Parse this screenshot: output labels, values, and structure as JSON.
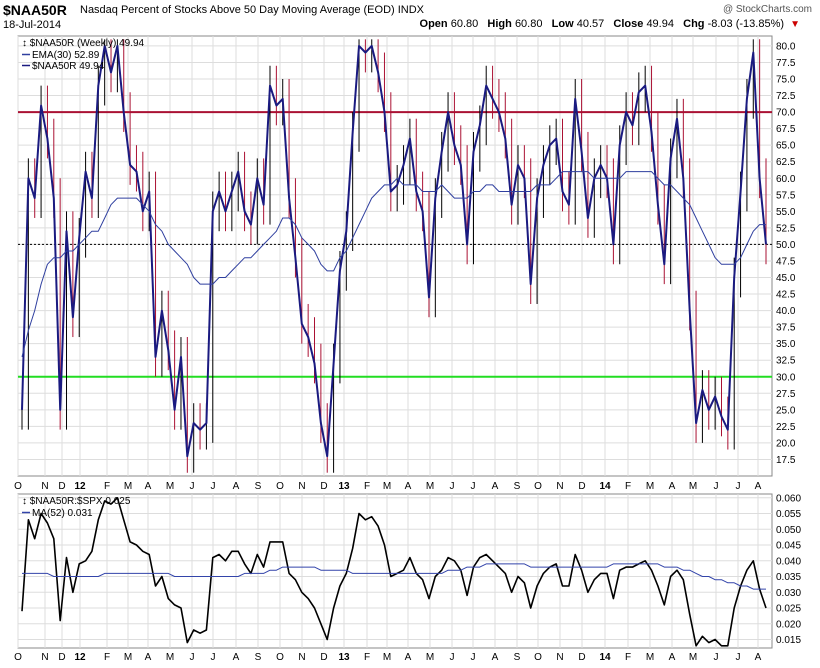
{
  "header": {
    "symbol": "$NAA50R",
    "description": "Nasdaq Percent of Stocks Above 50 Day Moving Average (EOD)  INDX",
    "watermark": "@ StockCharts.com",
    "date": "18-Jul-2014",
    "open_label": "Open",
    "open": "60.80",
    "high_label": "High",
    "high": "60.80",
    "low_label": "Low",
    "low": "40.57",
    "close_label": "Close",
    "close": "49.94",
    "chg_label": "Chg",
    "chg": "-8.03 (-13.85%)"
  },
  "colors": {
    "price_line": "#1a1a80",
    "ema_line": "#2f3f9f",
    "bar_up": "#000000",
    "bar_down": "#aa1133",
    "overbought_line": "#aa1133",
    "oversold_line": "#22dd22",
    "ratio_line": "#000000",
    "ma_line": "#3344aa"
  },
  "chart_data": [
    {
      "type": "line",
      "title": "$NAA50R (Weekly) 49.94",
      "legend": [
        "EMA(30) 52.89",
        "$NAA50R 49.94"
      ],
      "legend_position": "top-left",
      "ylim": [
        15,
        81.5
      ],
      "yticks": [
        "80.0",
        "77.5",
        "75.0",
        "72.5",
        "70.0",
        "67.5",
        "65.0",
        "62.5",
        "60.0",
        "57.5",
        "55.0",
        "52.5",
        "50.0",
        "47.5",
        "45.0",
        "42.5",
        "40.0",
        "37.5",
        "35.0",
        "32.5",
        "30.0",
        "27.5",
        "25.0",
        "22.5",
        "20.0",
        "17.5"
      ],
      "xtick_labels": [
        "O",
        "N",
        "D",
        "12",
        "F",
        "M",
        "A",
        "M",
        "J",
        "J",
        "A",
        "S",
        "O",
        "N",
        "D",
        "13",
        "F",
        "M",
        "A",
        "M",
        "J",
        "J",
        "A",
        "S",
        "O",
        "N",
        "D",
        "14",
        "F",
        "M",
        "A",
        "M",
        "J",
        "J",
        "A"
      ],
      "reference_lines": [
        70,
        50,
        30
      ],
      "grid": true,
      "series": [
        {
          "name": "$NAA50R",
          "values": [
            25,
            60,
            57,
            71,
            66,
            57,
            25,
            52,
            39,
            51,
            61,
            57,
            74,
            80,
            76,
            80,
            70,
            62,
            61,
            55,
            58,
            33,
            40,
            34,
            25,
            33,
            18,
            23,
            22,
            23,
            55,
            58,
            55,
            58,
            61,
            55,
            53,
            60,
            56,
            74,
            71,
            72,
            57,
            48,
            38,
            36,
            32,
            23,
            18,
            32,
            46,
            52,
            67,
            80,
            79,
            80,
            76,
            70,
            58,
            59,
            62,
            66,
            58,
            55,
            42,
            57,
            64,
            70,
            65,
            62,
            50,
            64,
            68,
            74,
            72,
            70,
            66,
            56,
            62,
            60,
            44,
            57,
            62,
            65,
            66,
            58,
            56,
            72,
            64,
            54,
            60,
            62,
            60,
            50,
            65,
            70,
            68,
            73,
            74,
            67,
            56,
            47,
            63,
            69,
            60,
            40,
            23,
            28,
            25,
            27,
            24,
            22,
            45,
            58,
            72,
            79,
            60,
            50
          ]
        },
        {
          "name": "EMA(30)",
          "values": [
            33,
            37,
            40,
            44,
            47,
            48,
            48,
            49,
            49,
            50,
            51,
            52,
            52,
            54,
            56,
            57,
            57,
            57,
            57,
            56,
            55,
            53,
            52,
            50,
            49,
            48,
            47,
            45,
            44,
            44,
            44,
            45,
            45,
            46,
            47,
            48,
            48,
            49,
            50,
            51,
            52,
            54,
            54,
            53,
            51,
            50,
            49,
            47,
            46,
            46,
            48,
            49,
            51,
            53,
            55,
            57,
            58,
            59,
            59,
            60,
            59,
            59,
            59,
            58,
            58,
            58,
            59,
            58,
            57,
            57,
            57,
            58,
            58,
            59,
            59,
            58,
            58,
            58,
            58,
            58,
            58,
            59,
            59,
            59,
            60,
            61,
            61,
            61,
            61,
            61,
            60,
            60,
            60,
            60,
            60,
            61,
            61,
            61,
            61,
            61,
            60,
            59,
            59,
            58,
            57,
            56,
            54,
            52,
            50,
            48,
            47,
            47,
            47,
            48,
            50,
            52,
            53,
            53
          ]
        }
      ]
    },
    {
      "type": "line",
      "title": "$NAA50R:$SPX 0.025",
      "legend": [
        "MA(52) 0.031"
      ],
      "legend_position": "top-left",
      "ylim": [
        0.0123,
        0.0612
      ],
      "yticks": [
        "0.060",
        "0.055",
        "0.050",
        "0.045",
        "0.040",
        "0.035",
        "0.030",
        "0.025",
        "0.020",
        "0.015"
      ],
      "xtick_labels": [
        "O",
        "N",
        "D",
        "12",
        "F",
        "M",
        "A",
        "M",
        "J",
        "J",
        "A",
        "S",
        "O",
        "N",
        "D",
        "13",
        "F",
        "M",
        "A",
        "M",
        "J",
        "J",
        "A",
        "S",
        "O",
        "N",
        "D",
        "14",
        "F",
        "M",
        "A",
        "M",
        "J",
        "J",
        "A"
      ],
      "grid": true,
      "series": [
        {
          "name": "$NAA50R:$SPX",
          "values": [
            0.024,
            0.053,
            0.047,
            0.055,
            0.052,
            0.047,
            0.021,
            0.041,
            0.03,
            0.039,
            0.04,
            0.043,
            0.053,
            0.059,
            0.058,
            0.06,
            0.053,
            0.046,
            0.045,
            0.043,
            0.042,
            0.032,
            0.035,
            0.028,
            0.026,
            0.025,
            0.014,
            0.018,
            0.017,
            0.018,
            0.041,
            0.042,
            0.04,
            0.043,
            0.043,
            0.039,
            0.036,
            0.042,
            0.038,
            0.046,
            0.046,
            0.046,
            0.036,
            0.034,
            0.03,
            0.028,
            0.025,
            0.02,
            0.015,
            0.025,
            0.032,
            0.036,
            0.044,
            0.055,
            0.053,
            0.054,
            0.051,
            0.045,
            0.035,
            0.036,
            0.037,
            0.041,
            0.036,
            0.034,
            0.028,
            0.035,
            0.037,
            0.041,
            0.04,
            0.037,
            0.029,
            0.038,
            0.041,
            0.042,
            0.04,
            0.038,
            0.036,
            0.03,
            0.035,
            0.033,
            0.025,
            0.032,
            0.036,
            0.038,
            0.039,
            0.032,
            0.032,
            0.042,
            0.037,
            0.03,
            0.034,
            0.036,
            0.036,
            0.028,
            0.037,
            0.038,
            0.038,
            0.039,
            0.04,
            0.037,
            0.032,
            0.026,
            0.035,
            0.037,
            0.034,
            0.023,
            0.013,
            0.016,
            0.014,
            0.015,
            0.013,
            0.013,
            0.025,
            0.032,
            0.037,
            0.04,
            0.031,
            0.025
          ]
        },
        {
          "name": "MA(52)",
          "values": [
            0.036,
            0.036,
            0.036,
            0.036,
            0.036,
            0.035,
            0.035,
            0.035,
            0.035,
            0.035,
            0.035,
            0.035,
            0.035,
            0.036,
            0.036,
            0.036,
            0.036,
            0.036,
            0.036,
            0.036,
            0.036,
            0.036,
            0.036,
            0.036,
            0.035,
            0.035,
            0.035,
            0.035,
            0.035,
            0.035,
            0.035,
            0.035,
            0.035,
            0.035,
            0.035,
            0.036,
            0.036,
            0.036,
            0.036,
            0.037,
            0.037,
            0.038,
            0.038,
            0.038,
            0.038,
            0.038,
            0.038,
            0.037,
            0.037,
            0.037,
            0.037,
            0.037,
            0.036,
            0.036,
            0.036,
            0.036,
            0.036,
            0.036,
            0.036,
            0.036,
            0.036,
            0.036,
            0.036,
            0.036,
            0.036,
            0.036,
            0.036,
            0.037,
            0.037,
            0.037,
            0.038,
            0.038,
            0.038,
            0.039,
            0.039,
            0.039,
            0.039,
            0.039,
            0.039,
            0.039,
            0.038,
            0.038,
            0.038,
            0.038,
            0.038,
            0.038,
            0.038,
            0.038,
            0.038,
            0.038,
            0.038,
            0.038,
            0.038,
            0.039,
            0.039,
            0.039,
            0.039,
            0.039,
            0.039,
            0.039,
            0.039,
            0.038,
            0.038,
            0.038,
            0.037,
            0.037,
            0.036,
            0.035,
            0.035,
            0.034,
            0.034,
            0.033,
            0.033,
            0.032,
            0.032,
            0.031,
            0.031,
            0.031
          ]
        }
      ]
    }
  ]
}
